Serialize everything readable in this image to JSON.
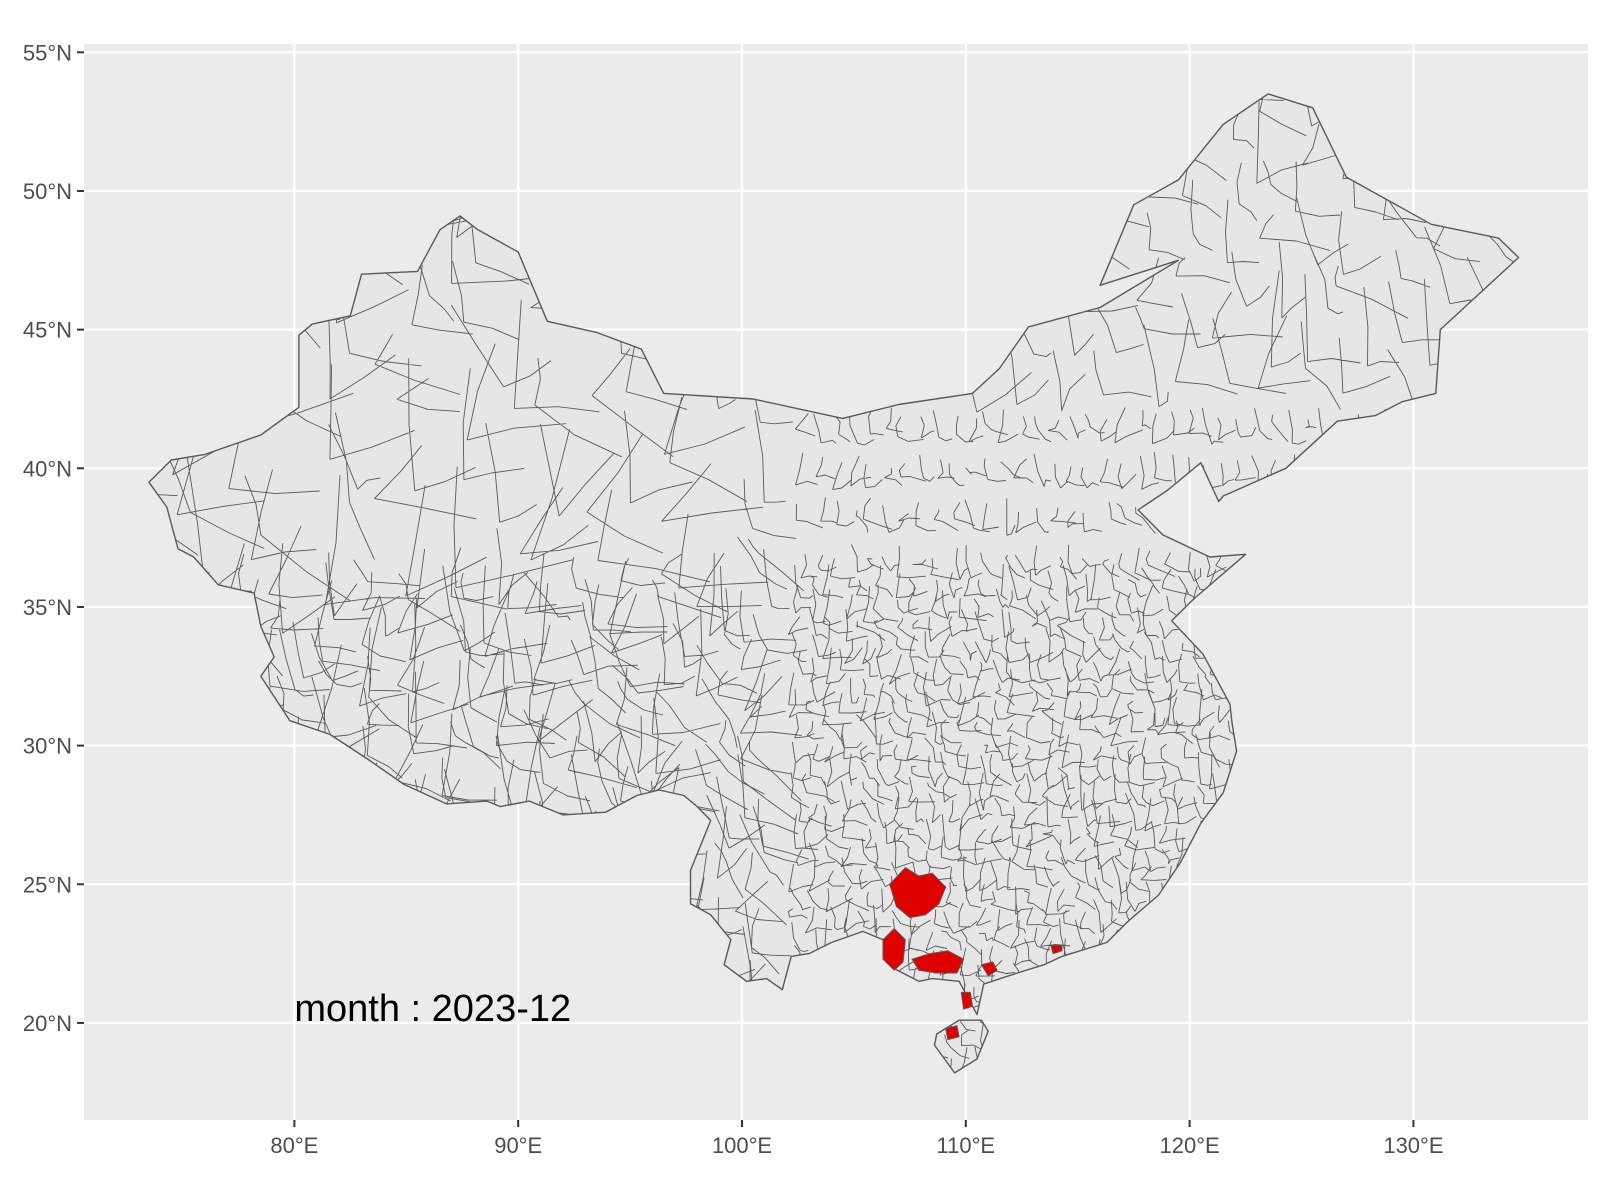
{
  "chart_data": {
    "type": "map",
    "projection": "longitude-latitude",
    "xlim": [
      70.6,
      137.8
    ],
    "ylim": [
      16.5,
      55.3
    ],
    "x_ticks": [
      {
        "value": 80,
        "label": "80°E"
      },
      {
        "value": 90,
        "label": "90°E"
      },
      {
        "value": 100,
        "label": "100°E"
      },
      {
        "value": 110,
        "label": "110°E"
      },
      {
        "value": 120,
        "label": "120°E"
      },
      {
        "value": 130,
        "label": "130°E"
      }
    ],
    "y_ticks": [
      {
        "value": 55,
        "label": "55°N"
      },
      {
        "value": 50,
        "label": "50°N"
      },
      {
        "value": 45,
        "label": "45°N"
      },
      {
        "value": 40,
        "label": "40°N"
      },
      {
        "value": 35,
        "label": "35°N"
      },
      {
        "value": 30,
        "label": "30°N"
      },
      {
        "value": 25,
        "label": "25°N"
      },
      {
        "value": 20,
        "label": "20°N"
      }
    ],
    "grid": true,
    "annotation": {
      "text": "month : 2023-12",
      "lon": 80,
      "lat": 20.5
    },
    "colors": {
      "panel_background": "#ebebeb",
      "grid_lines": "#ffffff",
      "region_fill": "#e6e6e6",
      "region_border": "#595959",
      "highlight_fill": "#e00000"
    },
    "country_outline": [
      [
        73.5,
        39.5
      ],
      [
        74.5,
        40.3
      ],
      [
        76,
        40.5
      ],
      [
        78.5,
        41.2
      ],
      [
        80.2,
        42.2
      ],
      [
        80.2,
        44.8
      ],
      [
        80.8,
        45.2
      ],
      [
        82.5,
        45.5
      ],
      [
        83,
        47
      ],
      [
        85.5,
        47.1
      ],
      [
        86.5,
        48.6
      ],
      [
        87.4,
        49.1
      ],
      [
        88.2,
        48.6
      ],
      [
        90,
        47.8
      ],
      [
        91.3,
        45.3
      ],
      [
        93.5,
        44.9
      ],
      [
        95.5,
        44.3
      ],
      [
        96.5,
        42.7
      ],
      [
        100.5,
        42.5
      ],
      [
        104.5,
        41.8
      ],
      [
        107,
        42.3
      ],
      [
        110.3,
        42.7
      ],
      [
        111.5,
        43.6
      ],
      [
        112.8,
        45.1
      ],
      [
        116,
        45.8
      ],
      [
        119.5,
        47.5
      ],
      [
        116,
        46.6
      ],
      [
        117.5,
        49.5
      ],
      [
        119.5,
        50.4
      ],
      [
        121.5,
        52.4
      ],
      [
        123.5,
        53.5
      ],
      [
        125.5,
        53
      ],
      [
        127,
        50.5
      ],
      [
        130.8,
        48.8
      ],
      [
        133.8,
        48.3
      ],
      [
        134.7,
        47.6
      ],
      [
        131.2,
        45
      ],
      [
        131,
        42.7
      ],
      [
        129.5,
        42.4
      ],
      [
        128.3,
        41.9
      ],
      [
        126.6,
        41.7
      ],
      [
        124.3,
        40
      ],
      [
        121.5,
        39
      ],
      [
        121.3,
        38.8
      ],
      [
        120.5,
        40.2
      ],
      [
        119,
        39.2
      ],
      [
        117.7,
        38.5
      ],
      [
        118.8,
        37.6
      ],
      [
        120.9,
        36.8
      ],
      [
        122.5,
        36.9
      ],
      [
        120.2,
        35.3
      ],
      [
        119.2,
        34.5
      ],
      [
        120.6,
        33.3
      ],
      [
        121.8,
        31.5
      ],
      [
        121.9,
        30.8
      ],
      [
        122.1,
        29.8
      ],
      [
        121.5,
        28.3
      ],
      [
        120.5,
        27.2
      ],
      [
        119.6,
        25.8
      ],
      [
        118.6,
        24.6
      ],
      [
        117.3,
        23.7
      ],
      [
        116.3,
        22.9
      ],
      [
        114.3,
        22.4
      ],
      [
        113.5,
        22.1
      ],
      [
        112.3,
        21.8
      ],
      [
        110.8,
        21.4
      ],
      [
        110.5,
        20.3
      ],
      [
        109.7,
        21.5
      ],
      [
        108.5,
        21.6
      ],
      [
        107.9,
        21.5
      ],
      [
        106.7,
        22
      ],
      [
        106.6,
        22.9
      ],
      [
        105.4,
        23.3
      ],
      [
        104,
        22.9
      ],
      [
        103,
        22.5
      ],
      [
        102.2,
        22.4
      ],
      [
        101.8,
        21.2
      ],
      [
        101.1,
        21.6
      ],
      [
        100.2,
        21.5
      ],
      [
        99.2,
        22.1
      ],
      [
        99.5,
        23
      ],
      [
        98.6,
        23.9
      ],
      [
        97.7,
        24.3
      ],
      [
        97.7,
        25.5
      ],
      [
        98.6,
        27.3
      ],
      [
        98,
        27.8
      ],
      [
        97.4,
        28.2
      ],
      [
        96.3,
        28.4
      ],
      [
        95.3,
        28.2
      ],
      [
        93.9,
        27.6
      ],
      [
        92,
        27.5
      ],
      [
        90.5,
        28
      ],
      [
        89.2,
        27.8
      ],
      [
        88.6,
        28
      ],
      [
        86.8,
        27.9
      ],
      [
        84.9,
        28.6
      ],
      [
        83.3,
        29.5
      ],
      [
        81.6,
        30.4
      ],
      [
        79.8,
        30.9
      ],
      [
        78.5,
        32.5
      ],
      [
        79.1,
        33.2
      ],
      [
        78.5,
        34.3
      ],
      [
        78.2,
        35.5
      ],
      [
        76.6,
        35.8
      ],
      [
        75.5,
        36.8
      ],
      [
        74.8,
        37.1
      ],
      [
        74.3,
        38.6
      ],
      [
        73.5,
        39.5
      ]
    ],
    "hainan_outline": [
      [
        108.6,
        19.2
      ],
      [
        109.5,
        18.2
      ],
      [
        110.5,
        18.7
      ],
      [
        111,
        19.7
      ],
      [
        110.7,
        20.1
      ],
      [
        109.7,
        20.1
      ],
      [
        108.7,
        19.6
      ],
      [
        108.6,
        19.2
      ]
    ],
    "highlighted_regions": [
      [
        [
          106.6,
          25.0
        ],
        [
          107.3,
          25.6
        ],
        [
          107.9,
          25.3
        ],
        [
          108.5,
          25.4
        ],
        [
          109.1,
          24.9
        ],
        [
          108.8,
          24.3
        ],
        [
          108.2,
          23.9
        ],
        [
          107.5,
          23.8
        ],
        [
          106.9,
          24.2
        ],
        [
          106.6,
          25.0
        ]
      ],
      [
        [
          106.3,
          23.0
        ],
        [
          106.8,
          23.4
        ],
        [
          107.3,
          23.0
        ],
        [
          107.2,
          22.2
        ],
        [
          106.8,
          21.9
        ],
        [
          106.3,
          22.3
        ],
        [
          106.3,
          23.0
        ]
      ],
      [
        [
          107.6,
          22.3
        ],
        [
          108.4,
          22.5
        ],
        [
          109.2,
          22.6
        ],
        [
          109.9,
          22.3
        ],
        [
          109.6,
          21.8
        ],
        [
          108.7,
          21.8
        ],
        [
          107.9,
          21.9
        ],
        [
          107.6,
          22.3
        ]
      ],
      [
        [
          110.7,
          22.1
        ],
        [
          111.2,
          22.2
        ],
        [
          111.4,
          21.9
        ],
        [
          111.0,
          21.7
        ],
        [
          110.7,
          22.1
        ]
      ],
      [
        [
          109.8,
          21.1
        ],
        [
          110.2,
          21.1
        ],
        [
          110.3,
          20.6
        ],
        [
          109.9,
          20.5
        ],
        [
          109.8,
          21.1
        ]
      ],
      [
        [
          109.1,
          19.8
        ],
        [
          109.6,
          19.9
        ],
        [
          109.7,
          19.5
        ],
        [
          109.2,
          19.4
        ],
        [
          109.1,
          19.8
        ]
      ],
      [
        [
          113.8,
          22.8
        ],
        [
          114.3,
          22.8
        ],
        [
          114.3,
          22.6
        ],
        [
          113.9,
          22.5
        ],
        [
          113.8,
          22.8
        ]
      ]
    ]
  }
}
